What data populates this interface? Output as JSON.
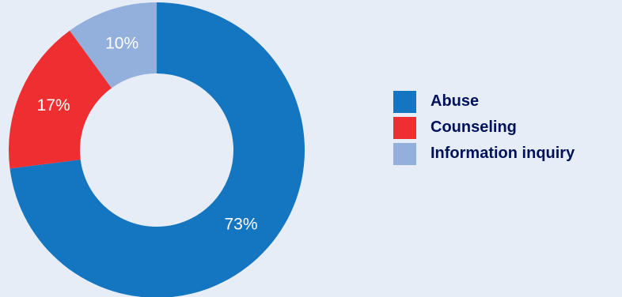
{
  "chart_data": {
    "type": "pie",
    "variant": "donut",
    "categories": [
      "Abuse",
      "Counseling",
      "Information inquiry"
    ],
    "values": [
      73,
      17,
      10
    ],
    "value_labels": [
      "73%",
      "17%",
      "10%"
    ],
    "colors": [
      "#1475c1",
      "#ee2e31",
      "#93afdc"
    ],
    "background": "#e7edf6",
    "legend_position": "right",
    "start_angle": "top",
    "direction": "clockwise"
  }
}
